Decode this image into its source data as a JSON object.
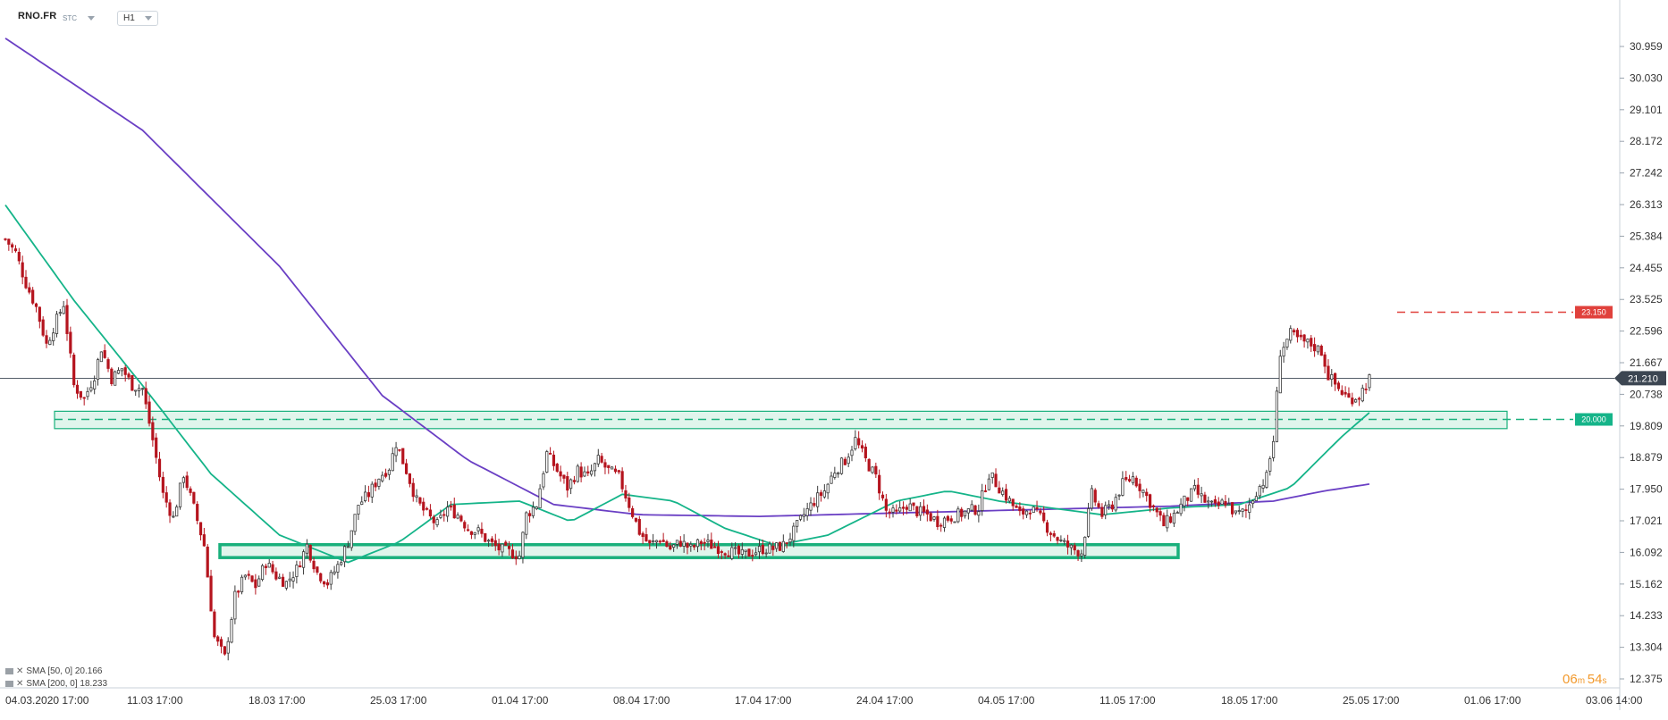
{
  "header": {
    "symbol": "RNO.FR",
    "source": "STC",
    "timeframe": "H1"
  },
  "legend": [
    {
      "label": "SMA [50, 0] 20.166"
    },
    {
      "label": "SMA [200, 0] 18.233"
    }
  ],
  "timer": {
    "m": "06",
    "s": "54"
  },
  "colors": {
    "up": "#3a3a3a",
    "down": "#b5141e",
    "sma50": "#15b489",
    "sma200": "#6a3fc4",
    "zone_fill": "#d6f2e6",
    "zone_stroke": "#19b07c",
    "resistance": "#e0413c",
    "current_badge": "#3c4652"
  },
  "chart_data": {
    "type": "candlestick",
    "y_ticks": [
      "30.959",
      "30.030",
      "29.101",
      "28.172",
      "27.242",
      "26.313",
      "25.384",
      "24.455",
      "23.525",
      "22.596",
      "21.667",
      "20.738",
      "19.809",
      "18.879",
      "17.950",
      "17.021",
      "16.092",
      "15.162",
      "14.233",
      "13.304",
      "12.375"
    ],
    "ylim": [
      12.375,
      31.8
    ],
    "x_ticks": [
      "04.03.2020  17:00",
      "11.03  17:00",
      "18.03  17:00",
      "25.03  17:00",
      "01.04  17:00",
      "08.04  17:00",
      "17.04  17:00",
      "24.04  17:00",
      "04.05  17:00",
      "11.05  17:00",
      "18.05  17:00",
      "25.05  17:00",
      "01.06  17:00",
      "03.06  14:00"
    ],
    "current_price": "21.210",
    "resistance": {
      "value": 23.15,
      "label": "23.150"
    },
    "support": {
      "value": 20.0,
      "label": "20.000"
    },
    "zones": [
      {
        "from": 19.73,
        "to": 20.24
      },
      {
        "from": 15.94,
        "to": 16.32
      }
    ],
    "close_path": [
      [
        0,
        25.3
      ],
      [
        3,
        24.9
      ],
      [
        6,
        24.0
      ],
      [
        9,
        23.3
      ],
      [
        12,
        22.2
      ],
      [
        14,
        22.7
      ],
      [
        17,
        23.4
      ],
      [
        20,
        21.0
      ],
      [
        23,
        20.6
      ],
      [
        26,
        21.3
      ],
      [
        28,
        22.1
      ],
      [
        31,
        21.2
      ],
      [
        34,
        21.5
      ],
      [
        37,
        21.0
      ],
      [
        40,
        20.9
      ],
      [
        43,
        19.4
      ],
      [
        46,
        17.8
      ],
      [
        49,
        17.1
      ],
      [
        52,
        18.4
      ],
      [
        55,
        17.4
      ],
      [
        58,
        16.3
      ],
      [
        61,
        13.6
      ],
      [
        64,
        13.0
      ],
      [
        67,
        14.8
      ],
      [
        70,
        15.4
      ],
      [
        73,
        15.1
      ],
      [
        76,
        15.8
      ],
      [
        79,
        15.4
      ],
      [
        82,
        15.2
      ],
      [
        85,
        15.6
      ],
      [
        88,
        16.3
      ],
      [
        91,
        15.5
      ],
      [
        94,
        15.2
      ],
      [
        97,
        15.7
      ],
      [
        100,
        16.4
      ],
      [
        103,
        17.5
      ],
      [
        106,
        17.8
      ],
      [
        109,
        18.3
      ],
      [
        112,
        18.6
      ],
      [
        114,
        19.3
      ],
      [
        117,
        18.5
      ],
      [
        120,
        17.6
      ],
      [
        123,
        17.2
      ],
      [
        126,
        16.9
      ],
      [
        129,
        17.4
      ],
      [
        132,
        17.2
      ],
      [
        135,
        16.8
      ],
      [
        138,
        16.7
      ],
      [
        141,
        16.4
      ],
      [
        144,
        16.2
      ],
      [
        147,
        16.1
      ],
      [
        150,
        16.0
      ],
      [
        152,
        17.2
      ],
      [
        155,
        17.5
      ],
      [
        158,
        19.0
      ],
      [
        161,
        18.5
      ],
      [
        164,
        18.0
      ],
      [
        167,
        18.5
      ],
      [
        170,
        18.3
      ],
      [
        173,
        18.8
      ],
      [
        176,
        18.5
      ],
      [
        179,
        18.3
      ],
      [
        182,
        17.5
      ],
      [
        185,
        16.7
      ],
      [
        188,
        16.3
      ],
      [
        191,
        16.5
      ],
      [
        194,
        16.2
      ],
      [
        197,
        16.4
      ],
      [
        200,
        16.2
      ],
      [
        203,
        16.4
      ],
      [
        206,
        16.3
      ],
      [
        209,
        16.2
      ],
      [
        212,
        16.1
      ],
      [
        215,
        16.0
      ],
      [
        218,
        16.1
      ],
      [
        221,
        16.2
      ],
      [
        224,
        16.2
      ],
      [
        227,
        16.3
      ],
      [
        230,
        16.7
      ],
      [
        233,
        17.2
      ],
      [
        236,
        17.6
      ],
      [
        239,
        17.9
      ],
      [
        242,
        18.5
      ],
      [
        245,
        18.8
      ],
      [
        248,
        19.4
      ],
      [
        251,
        18.8
      ],
      [
        254,
        18.3
      ],
      [
        257,
        17.3
      ],
      [
        260,
        17.2
      ],
      [
        263,
        17.5
      ],
      [
        266,
        17.3
      ],
      [
        269,
        17.2
      ],
      [
        272,
        17.0
      ],
      [
        275,
        17.1
      ],
      [
        278,
        17.2
      ],
      [
        281,
        17.3
      ],
      [
        284,
        17.4
      ],
      [
        287,
        18.4
      ],
      [
        290,
        18.0
      ],
      [
        293,
        17.6
      ],
      [
        296,
        17.2
      ],
      [
        299,
        17.4
      ],
      [
        302,
        17.1
      ],
      [
        305,
        16.7
      ],
      [
        308,
        16.4
      ],
      [
        311,
        16.2
      ],
      [
        314,
        16.1
      ],
      [
        317,
        17.8
      ],
      [
        320,
        17.2
      ],
      [
        323,
        17.5
      ],
      [
        326,
        18.1
      ],
      [
        329,
        18.3
      ],
      [
        332,
        17.9
      ],
      [
        335,
        17.4
      ],
      [
        338,
        16.9
      ],
      [
        341,
        17.2
      ],
      [
        344,
        17.6
      ],
      [
        347,
        17.9
      ],
      [
        350,
        17.6
      ],
      [
        353,
        17.4
      ],
      [
        356,
        17.6
      ],
      [
        359,
        17.2
      ],
      [
        362,
        17.3
      ],
      [
        365,
        17.9
      ],
      [
        368,
        18.3
      ],
      [
        370,
        19.4
      ],
      [
        372,
        22.0
      ],
      [
        375,
        22.5
      ],
      [
        378,
        22.3
      ],
      [
        381,
        22.2
      ],
      [
        384,
        22.0
      ],
      [
        386,
        21.3
      ],
      [
        389,
        20.9
      ],
      [
        392,
        20.6
      ],
      [
        395,
        20.7
      ],
      [
        398,
        21.2
      ]
    ],
    "sma50": [
      [
        0,
        26.3
      ],
      [
        20,
        23.5
      ],
      [
        40,
        21.0
      ],
      [
        60,
        18.4
      ],
      [
        80,
        16.6
      ],
      [
        100,
        15.8
      ],
      [
        115,
        16.4
      ],
      [
        130,
        17.5
      ],
      [
        150,
        17.6
      ],
      [
        165,
        17.0
      ],
      [
        180,
        17.8
      ],
      [
        195,
        17.6
      ],
      [
        210,
        16.8
      ],
      [
        225,
        16.3
      ],
      [
        240,
        16.6
      ],
      [
        260,
        17.6
      ],
      [
        275,
        17.9
      ],
      [
        290,
        17.6
      ],
      [
        305,
        17.4
      ],
      [
        320,
        17.2
      ],
      [
        340,
        17.4
      ],
      [
        360,
        17.5
      ],
      [
        375,
        18.0
      ],
      [
        390,
        19.5
      ],
      [
        398,
        20.2
      ]
    ],
    "sma200": [
      [
        0,
        31.2
      ],
      [
        40,
        28.5
      ],
      [
        80,
        24.5
      ],
      [
        110,
        20.7
      ],
      [
        135,
        18.8
      ],
      [
        160,
        17.5
      ],
      [
        185,
        17.2
      ],
      [
        220,
        17.15
      ],
      [
        260,
        17.25
      ],
      [
        300,
        17.35
      ],
      [
        340,
        17.45
      ],
      [
        370,
        17.6
      ],
      [
        385,
        17.9
      ],
      [
        398,
        18.1
      ]
    ]
  }
}
